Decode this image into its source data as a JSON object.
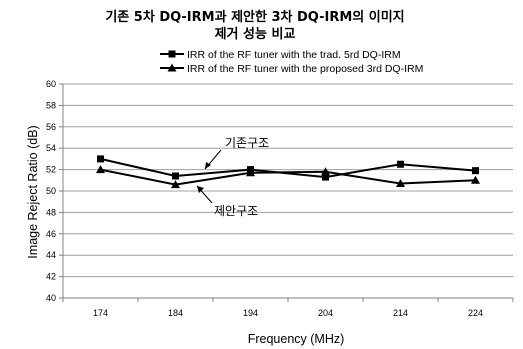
{
  "chart_data": {
    "type": "line",
    "title_line1": "기존 5차 DQ-IRM과 제안한 3차 DQ-IRM의 이미지",
    "title_line2": "제거 성능 비교",
    "xlabel": "Frequency (MHz)",
    "ylabel": "Image Reject Ratio (dB)",
    "ylim": [
      40,
      60
    ],
    "ytick_step": 2,
    "grid": "horizontal",
    "legend_position": "top",
    "categories": [
      "174",
      "184",
      "194",
      "204",
      "214",
      "224"
    ],
    "series": [
      {
        "name": "IRR of the RF tuner with the trad. 5rd DQ-IRM",
        "marker": "square",
        "annotation": "기존구조",
        "values": [
          53.0,
          51.4,
          52.0,
          51.3,
          52.5,
          51.9
        ]
      },
      {
        "name": "IRR of the RF tuner with the proposed 3rd DQ-IRM",
        "marker": "triangle",
        "annotation": "제안구조",
        "values": [
          52.0,
          50.6,
          51.7,
          51.8,
          50.7,
          51.0
        ]
      }
    ]
  },
  "colors": {
    "line": "#000000",
    "grid": "#a0a0a0",
    "axis": "#808080"
  }
}
